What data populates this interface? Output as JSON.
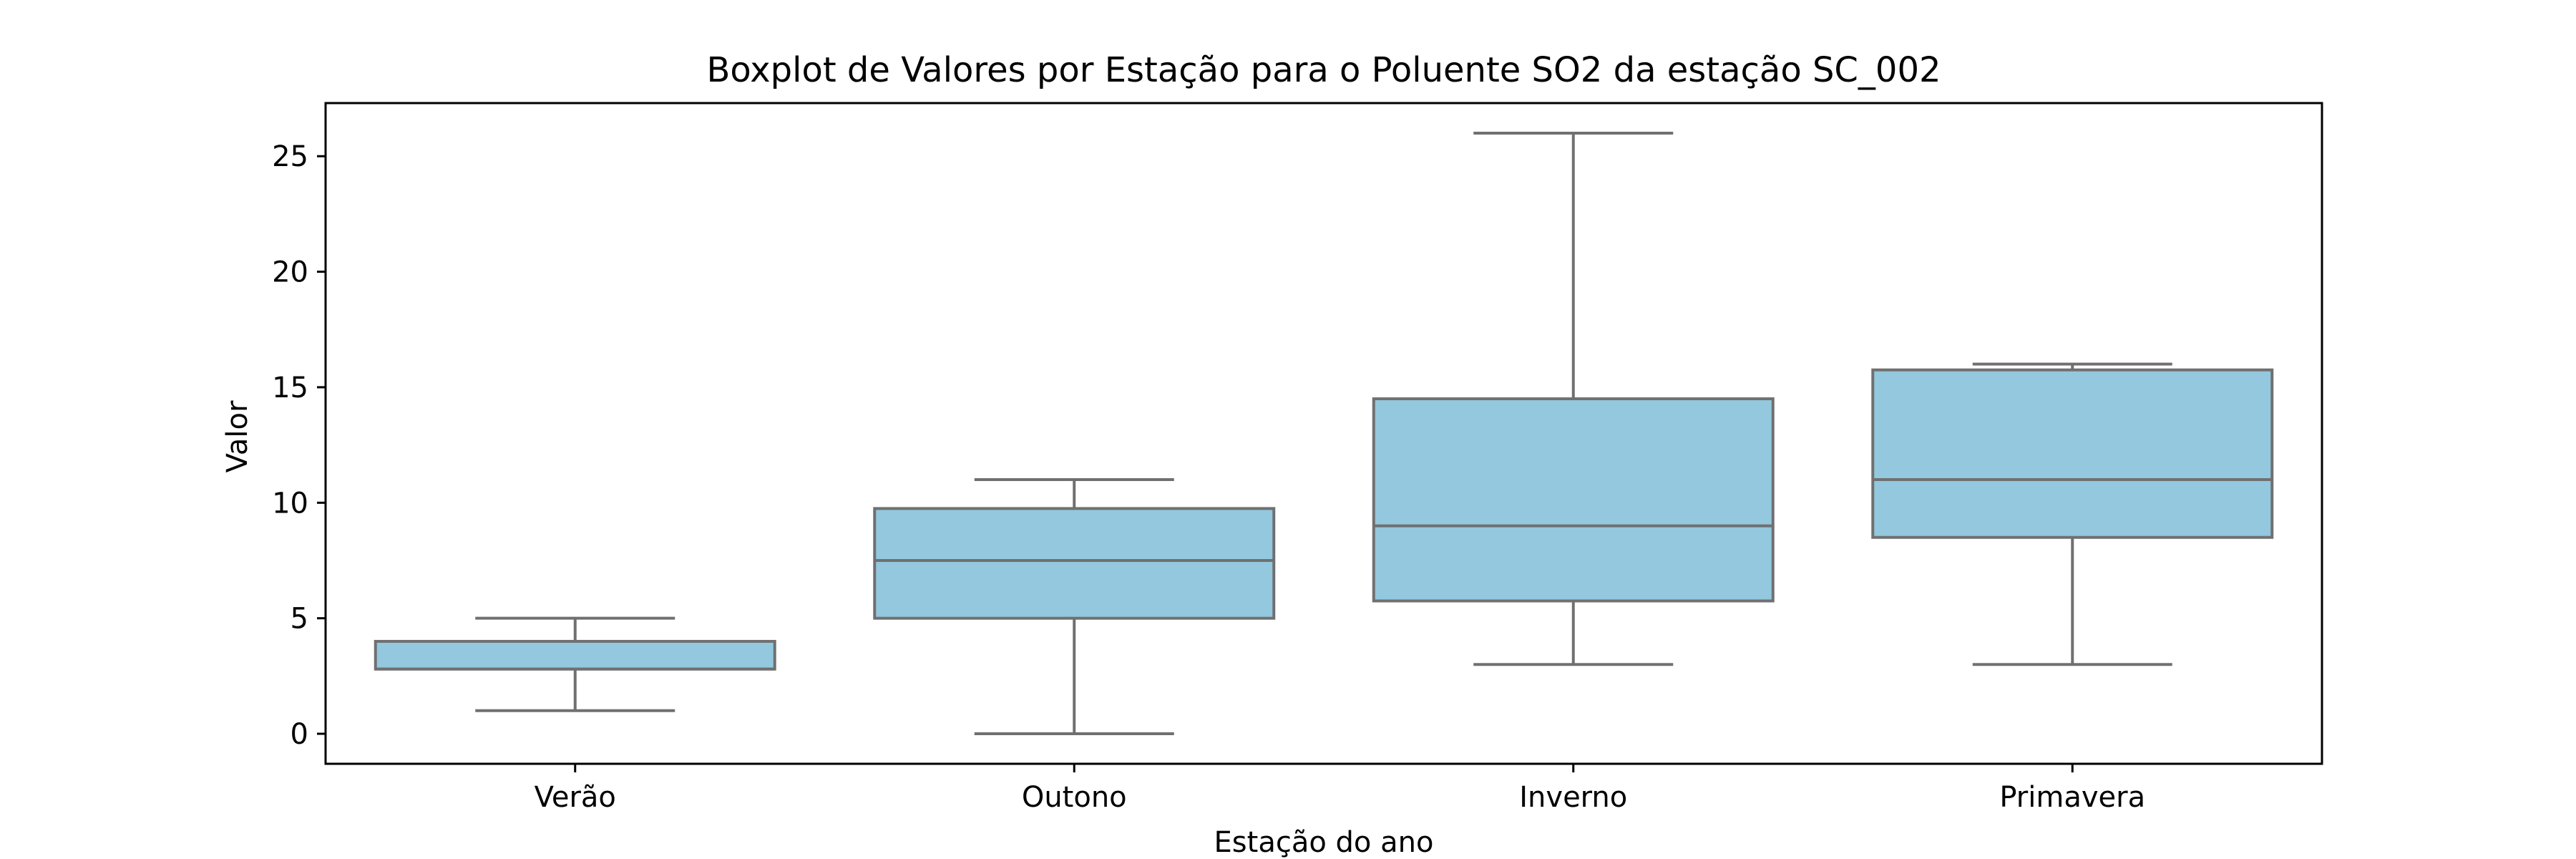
{
  "chart_data": {
    "type": "boxplot",
    "title": "Boxplot de Valores por Estação para o Poluente SO2 da estação SC_002",
    "xlabel": "Estação do ano",
    "ylabel": "Valor",
    "ylim": [
      -1.3,
      27.3
    ],
    "yticks": [
      0,
      5,
      10,
      15,
      20,
      25
    ],
    "categories": [
      "Verão",
      "Outono",
      "Inverno",
      "Primavera"
    ],
    "boxes": [
      {
        "category": "Verão",
        "whisker_low": 1,
        "q1": 2.8,
        "median": 2.8,
        "q3": 4.0,
        "whisker_high": 5
      },
      {
        "category": "Outono",
        "whisker_low": 0,
        "q1": 5.0,
        "median": 7.5,
        "q3": 9.75,
        "whisker_high": 11
      },
      {
        "category": "Inverno",
        "whisker_low": 3,
        "q1": 5.75,
        "median": 9.0,
        "q3": 14.5,
        "whisker_high": 26
      },
      {
        "category": "Primavera",
        "whisker_low": 3,
        "q1": 8.5,
        "median": 11.0,
        "q3": 15.75,
        "whisker_high": 16
      }
    ],
    "grid": false,
    "colors": {
      "box_fill": "#93c8df",
      "box_edge": "#707070",
      "axes": "#000000"
    }
  }
}
